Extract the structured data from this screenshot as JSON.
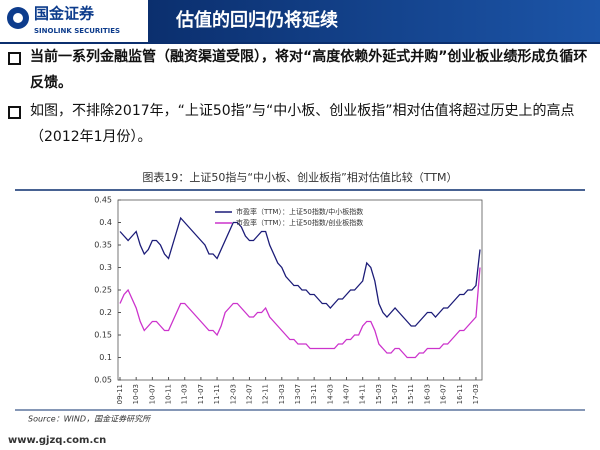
{
  "header": {
    "logo": "国金证券",
    "logo_en": "SINOLINK SECURITIES",
    "title": "估值的回归仍将延续"
  },
  "bullets": [
    "当前一系列金融监管（融资渠道受限），将对“高度依赖外延式并购”创业板业绩形成负循环反馈。",
    "如图，不排除2017年，“上证50指”与“中小板、创业板指”相对估值将超过历史上的高点（2012年1月份）。"
  ],
  "chart_data": {
    "type": "line",
    "title": "图表19：上证50指与“中小板、创业板指”相对估值比较（TTM）",
    "categories": [
      "09-11",
      null,
      null,
      null,
      "10-03",
      null,
      null,
      null,
      "10-07",
      null,
      null,
      null,
      "10-11",
      null,
      null,
      null,
      "11-03",
      null,
      null,
      null,
      "11-07",
      null,
      null,
      null,
      "11-11",
      null,
      null,
      null,
      "12-03",
      null,
      null,
      null,
      "12-07",
      null,
      null,
      null,
      "12-11",
      null,
      null,
      null,
      "13-03",
      null,
      null,
      null,
      "13-07",
      null,
      null,
      null,
      "13-11",
      null,
      null,
      null,
      "14-03",
      null,
      null,
      null,
      "14-07",
      null,
      null,
      null,
      "14-11",
      null,
      null,
      null,
      "15-03",
      null,
      null,
      null,
      "15-07",
      null,
      null,
      null,
      "15-11",
      null,
      null,
      null,
      "16-03",
      null,
      null,
      null,
      "16-07",
      null,
      null,
      null,
      "16-11",
      null,
      null,
      null,
      "17-03",
      null
    ],
    "series": [
      {
        "name": "市盈率（TTM）：上证50指数/中小板指数",
        "color": "#1c1c78",
        "values": [
          0.38,
          0.37,
          0.36,
          0.37,
          0.38,
          0.35,
          0.33,
          0.34,
          0.36,
          0.36,
          0.35,
          0.33,
          0.32,
          0.35,
          0.38,
          0.41,
          0.4,
          0.39,
          0.38,
          0.37,
          0.36,
          0.35,
          0.33,
          0.33,
          0.32,
          0.34,
          0.36,
          0.38,
          0.4,
          0.4,
          0.39,
          0.37,
          0.36,
          0.36,
          0.37,
          0.38,
          0.38,
          0.35,
          0.33,
          0.31,
          0.3,
          0.28,
          0.27,
          0.26,
          0.26,
          0.25,
          0.25,
          0.24,
          0.24,
          0.23,
          0.22,
          0.22,
          0.21,
          0.22,
          0.23,
          0.23,
          0.24,
          0.25,
          0.25,
          0.26,
          0.27,
          0.31,
          0.3,
          0.27,
          0.22,
          0.2,
          0.19,
          0.2,
          0.21,
          0.2,
          0.19,
          0.18,
          0.17,
          0.17,
          0.18,
          0.19,
          0.2,
          0.2,
          0.19,
          0.2,
          0.21,
          0.21,
          0.22,
          0.23,
          0.24,
          0.24,
          0.25,
          0.25,
          0.26,
          0.34
        ]
      },
      {
        "name": "市盈率（TTM）：上证50指数/创业板指数",
        "color": "#cc33cc",
        "values": [
          0.22,
          0.24,
          0.25,
          0.23,
          0.21,
          0.18,
          0.16,
          0.17,
          0.18,
          0.18,
          0.17,
          0.16,
          0.16,
          0.18,
          0.2,
          0.22,
          0.22,
          0.21,
          0.2,
          0.19,
          0.18,
          0.17,
          0.16,
          0.16,
          0.15,
          0.17,
          0.2,
          0.21,
          0.22,
          0.22,
          0.21,
          0.2,
          0.19,
          0.19,
          0.2,
          0.2,
          0.21,
          0.19,
          0.18,
          0.17,
          0.16,
          0.15,
          0.14,
          0.14,
          0.13,
          0.13,
          0.13,
          0.12,
          0.12,
          0.12,
          0.12,
          0.12,
          0.12,
          0.12,
          0.13,
          0.13,
          0.14,
          0.14,
          0.15,
          0.15,
          0.17,
          0.18,
          0.18,
          0.16,
          0.13,
          0.12,
          0.11,
          0.11,
          0.12,
          0.12,
          0.11,
          0.1,
          0.1,
          0.1,
          0.11,
          0.11,
          0.12,
          0.12,
          0.12,
          0.12,
          0.13,
          0.13,
          0.14,
          0.15,
          0.16,
          0.16,
          0.17,
          0.18,
          0.19,
          0.3
        ]
      }
    ],
    "ylim": [
      0.05,
      0.45
    ],
    "yticks": [
      0.05,
      0.1,
      0.15,
      0.2,
      0.25,
      0.3,
      0.35,
      0.4,
      0.45
    ],
    "source": "Source：WIND，国金证券研究所"
  },
  "footer": "www.gjzq.com.cn"
}
